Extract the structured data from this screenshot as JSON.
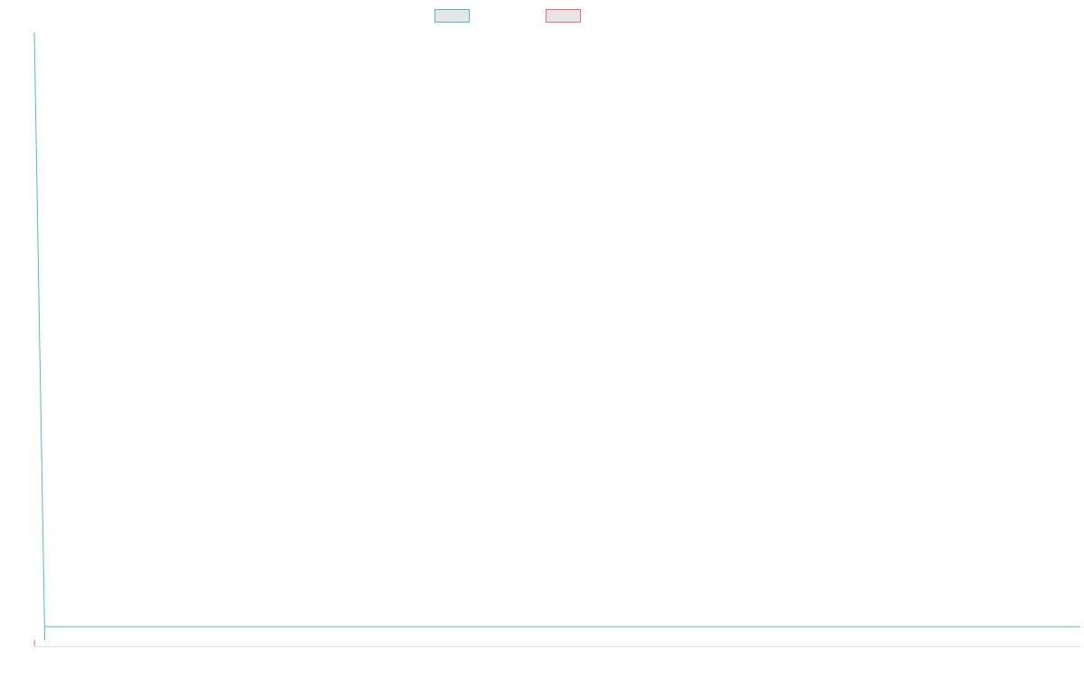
{
  "chart_data": {
    "type": "line",
    "title": "",
    "xlabel": "",
    "ylabel": "",
    "legend_position": "top-center",
    "grid": false,
    "series": [
      {
        "color": "#4bc0c0",
        "fill": "#e5e5e5",
        "x": [
          0,
          1
        ],
        "y": [
          100,
          1
        ]
      },
      {
        "color": "#ff6384",
        "fill": "#e5e5e5",
        "x": [
          0,
          0.03
        ],
        "y": [
          0,
          1
        ]
      }
    ],
    "xlim": [
      0,
      100
    ],
    "ylim": [
      0,
      100
    ]
  },
  "axis_color": "#e0e0e0"
}
